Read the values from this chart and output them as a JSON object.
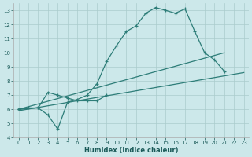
{
  "xlabel": "Humidex (Indice chaleur)",
  "bg_color": "#cce8ea",
  "grid_color": "#aacccc",
  "line_color": "#2d7d78",
  "xlim": [
    -0.5,
    23.5
  ],
  "ylim": [
    4,
    13.5
  ],
  "xticks": [
    0,
    1,
    2,
    3,
    4,
    5,
    6,
    7,
    8,
    9,
    10,
    11,
    12,
    13,
    14,
    15,
    16,
    17,
    18,
    19,
    20,
    21,
    22,
    23
  ],
  "yticks": [
    4,
    5,
    6,
    7,
    8,
    9,
    10,
    11,
    12,
    13
  ],
  "series": [
    {
      "x": [
        0,
        1,
        2,
        3,
        4,
        5,
        6,
        7,
        8,
        9,
        10,
        11,
        12,
        13,
        14,
        15,
        16,
        17,
        18,
        19,
        20,
        21
      ],
      "y": [
        6.0,
        6.1,
        6.1,
        5.6,
        4.6,
        6.5,
        6.7,
        7.0,
        7.8,
        9.4,
        10.5,
        11.5,
        11.9,
        12.8,
        13.2,
        13.0,
        12.8,
        13.1,
        11.5,
        10.0,
        9.5,
        8.7
      ],
      "marker": true
    },
    {
      "x": [
        0,
        2,
        3,
        4,
        5,
        6,
        7,
        8,
        9
      ],
      "y": [
        6.0,
        6.1,
        7.2,
        7.0,
        6.8,
        6.6,
        6.6,
        6.6,
        7.0
      ],
      "marker": true
    },
    {
      "x": [
        0,
        21
      ],
      "y": [
        6.0,
        10.0
      ],
      "marker": false
    },
    {
      "x": [
        0,
        23
      ],
      "y": [
        5.9,
        8.6
      ],
      "marker": false
    }
  ]
}
